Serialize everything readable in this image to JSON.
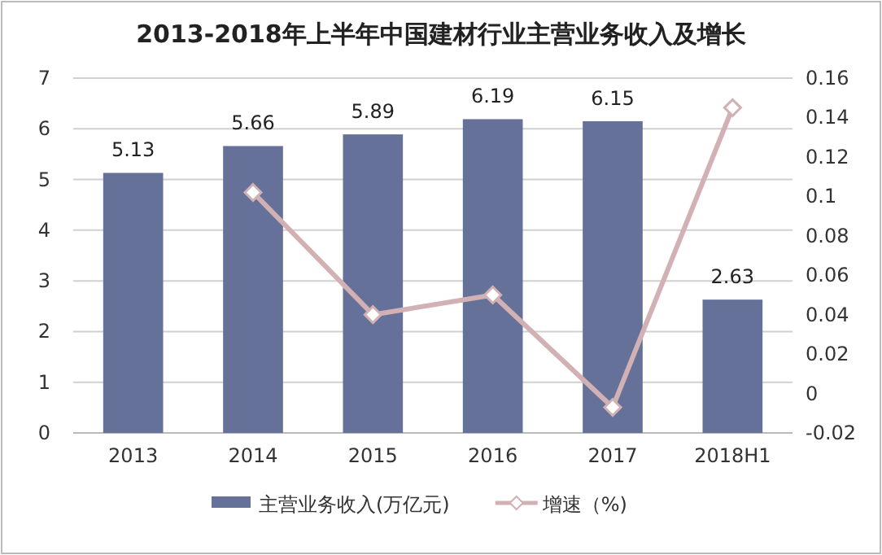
{
  "chart_data": {
    "type": "bar",
    "title": "2013-2018年上半年中国建材行业主营业务收入及增长",
    "categories": [
      "2013",
      "2014",
      "2015",
      "2016",
      "2017",
      "2018H1"
    ],
    "series": [
      {
        "name": "主营业务收入(万亿元)",
        "color": "#657199",
        "values": [
          5.13,
          5.66,
          5.89,
          6.19,
          6.15,
          2.63
        ],
        "value_labels": [
          "5.13",
          "5.66",
          "5.89",
          "6.19",
          "6.15",
          "2.63"
        ]
      },
      {
        "name": "增速（%)",
        "type": "line",
        "axis": "y2",
        "color": "#d1b1b4",
        "marker": "diamond",
        "values": [
          null,
          0.102,
          0.04,
          0.05,
          -0.007,
          0.145
        ]
      }
    ],
    "ylim": [
      0,
      7
    ],
    "yticks": [
      0,
      1,
      2,
      3,
      4,
      5,
      6,
      7
    ],
    "y2lim": [
      -0.02,
      0.16
    ],
    "y2ticks": [
      {
        "value": -0.02,
        "label": "-0.02"
      },
      {
        "value": 0,
        "label": "0"
      },
      {
        "value": 0.02,
        "label": "0.02"
      },
      {
        "value": 0.04,
        "label": "0.04"
      },
      {
        "value": 0.06,
        "label": "0.06"
      },
      {
        "value": 0.08,
        "label": "0.08"
      },
      {
        "value": 0.1,
        "label": "0.1"
      },
      {
        "value": 0.12,
        "label": "0.12"
      },
      {
        "value": 0.14,
        "label": "0.14"
      },
      {
        "value": 0.16,
        "label": "0.16"
      }
    ],
    "grid": "y",
    "legend": "bottom"
  }
}
